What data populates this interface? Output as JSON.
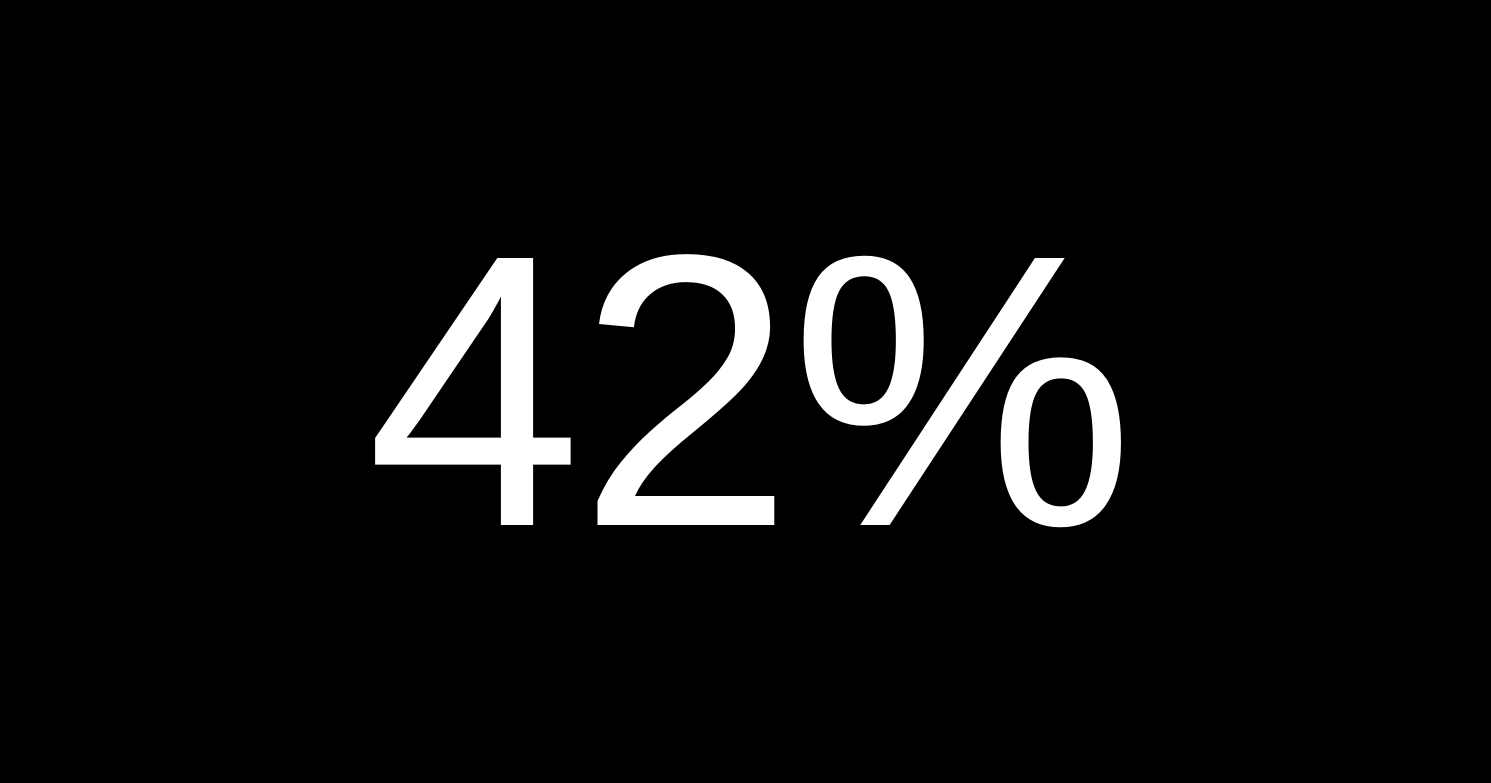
{
  "display": {
    "value_text": "42%",
    "value": 42,
    "unit": "%",
    "background_color": "#000000",
    "text_color": "#ffffff"
  }
}
